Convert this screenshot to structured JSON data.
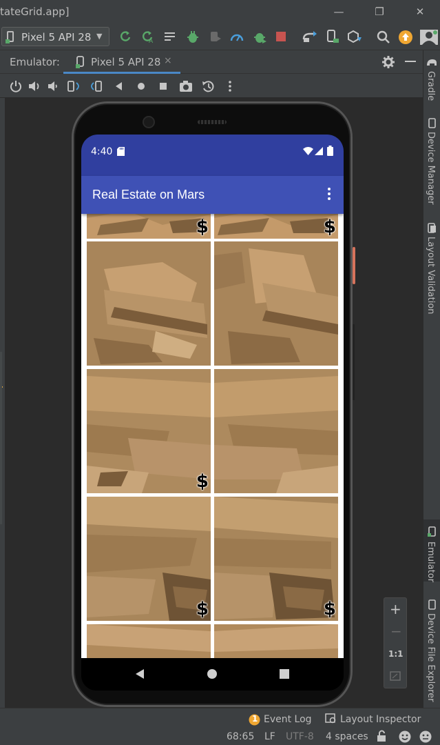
{
  "window": {
    "title_fragment": "tateGrid.app]",
    "controls": {
      "minimize": "—",
      "restore": "❐",
      "close": "✕"
    }
  },
  "toolbar": {
    "device_selector": "Pixel 5 API 28"
  },
  "emulator_panel": {
    "label": "Emulator:",
    "tab_label": "Pixel 5 API 28",
    "tab_close": "×"
  },
  "side_tabs": {
    "right": [
      "Gradle",
      "Device Manager",
      "Layout Validation",
      "Emulator",
      "Device File Explorer"
    ]
  },
  "zoom_panel": {
    "zoom_in": "+",
    "zoom_out": "−",
    "actual_size": "1:1"
  },
  "phone": {
    "status_time": "4:40",
    "app_title": "Real Estate on Mars",
    "tile_badge": "$"
  },
  "footer": {
    "event_log_count": "1",
    "event_log": "Event Log",
    "layout_inspector": "Layout Inspector",
    "cursor_position": "68:65",
    "line_separator": "LF",
    "encoding": "UTF-8",
    "indent": "4 spaces"
  },
  "colors": {
    "ide_bg": "#3c3f41",
    "canvas_bg": "#2b2b2b",
    "status_bar": "#303f9f",
    "app_bar": "#3f51b5",
    "tab_accent": "#4a88c7",
    "mars_rock": "#b08a5c",
    "run_green": "#59a869",
    "stop_red": "#c75450",
    "update_orange": "#f0a732"
  }
}
